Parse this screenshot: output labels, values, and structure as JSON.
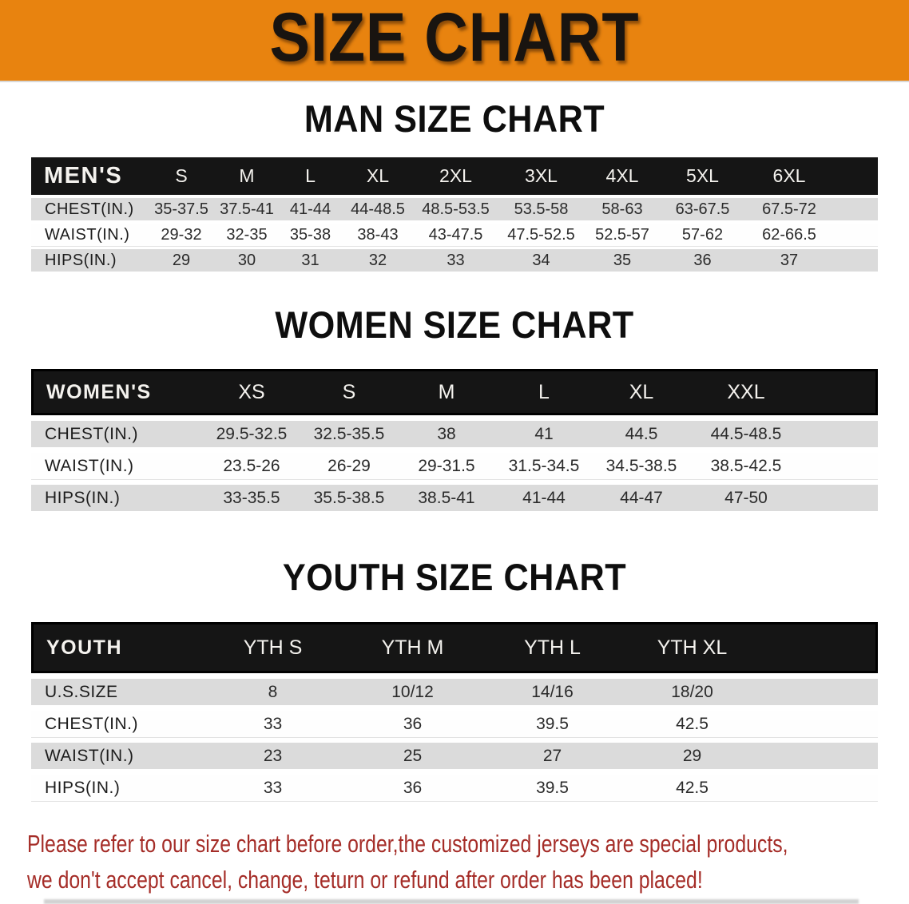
{
  "banner": {
    "title": "SIZE CHART"
  },
  "colors": {
    "banner_bg": "#E8830F",
    "header_bar_bg": "#151515",
    "row_stripe": "#DBDBDB",
    "footer_text": "#A52D28"
  },
  "sections": [
    {
      "heading": "MAN SIZE CHART",
      "table": {
        "label": "MEN'S",
        "columns": [
          "S",
          "M",
          "L",
          "XL",
          "2XL",
          "3XL",
          "4XL",
          "5XL",
          "6XL"
        ],
        "rows": [
          {
            "label": "CHEST(IN.)",
            "values": [
              "35-37.5",
              "37.5-41",
              "41-44",
              "44-48.5",
              "48.5-53.5",
              "53.5-58",
              "58-63",
              "63-67.5",
              "67.5-72"
            ]
          },
          {
            "label": "WAIST(IN.)",
            "values": [
              "29-32",
              "32-35",
              "35-38",
              "38-43",
              "43-47.5",
              "47.5-52.5",
              "52.5-57",
              "57-62",
              "62-66.5"
            ]
          },
          {
            "label": "HIPS(IN.)",
            "values": [
              "29",
              "30",
              "31",
              "32",
              "33",
              "34",
              "35",
              "36",
              "37"
            ]
          }
        ]
      }
    },
    {
      "heading": "WOMEN SIZE CHART",
      "table": {
        "label": "WOMEN'S",
        "columns": [
          "XS",
          "S",
          "M",
          "L",
          "XL",
          "XXL"
        ],
        "rows": [
          {
            "label": "CHEST(IN.)",
            "values": [
              "29.5-32.5",
              "32.5-35.5",
              "38",
              "41",
              "44.5",
              "44.5-48.5"
            ]
          },
          {
            "label": "WAIST(IN.)",
            "values": [
              "23.5-26",
              "26-29",
              "29-31.5",
              "31.5-34.5",
              "34.5-38.5",
              "38.5-42.5"
            ]
          },
          {
            "label": "HIPS(IN.)",
            "values": [
              "33-35.5",
              "35.5-38.5",
              "38.5-41",
              "41-44",
              "44-47",
              "47-50"
            ]
          }
        ]
      }
    },
    {
      "heading": "YOUTH SIZE CHART",
      "table": {
        "label": "YOUTH",
        "columns": [
          "YTH S",
          "YTH M",
          "YTH L",
          "YTH XL"
        ],
        "rows": [
          {
            "label": "U.S.SIZE",
            "values": [
              "8",
              "10/12",
              "14/16",
              "18/20"
            ]
          },
          {
            "label": "CHEST(IN.)",
            "values": [
              "33",
              "36",
              "39.5",
              "42.5"
            ]
          },
          {
            "label": "WAIST(IN.)",
            "values": [
              "23",
              "25",
              "27",
              "29"
            ]
          },
          {
            "label": "HIPS(IN.)",
            "values": [
              "33",
              "36",
              "39.5",
              "42.5"
            ]
          }
        ]
      }
    }
  ],
  "footer": {
    "line1": "Please refer to our size chart before order,the customized jerseys are special products,",
    "line2": "we don't accept cancel, change, teturn or refund after order has been placed!"
  }
}
